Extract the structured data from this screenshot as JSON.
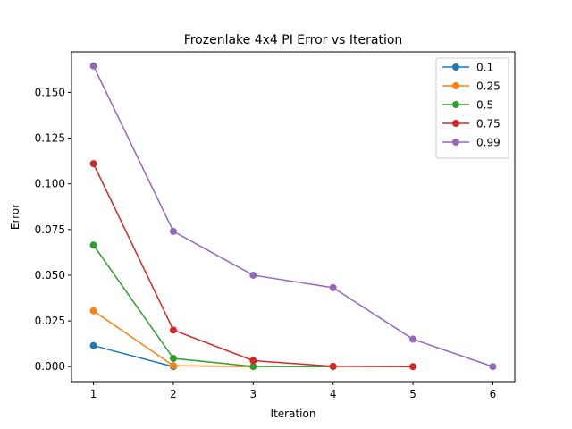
{
  "chart_data": {
    "type": "line",
    "title": "Frozenlake 4x4 PI Error vs Iteration",
    "xlabel": "Iteration",
    "ylabel": "Error",
    "xlim": [
      0.725,
      6.275
    ],
    "ylim": [
      -0.0082,
      0.1722
    ],
    "xticks": [
      1,
      2,
      3,
      4,
      5,
      6
    ],
    "xtick_labels": [
      "1",
      "2",
      "3",
      "4",
      "5",
      "6"
    ],
    "yticks": [
      0.0,
      0.025,
      0.05,
      0.075,
      0.1,
      0.125,
      0.15
    ],
    "ytick_labels": [
      "0.000",
      "0.025",
      "0.050",
      "0.075",
      "0.100",
      "0.125",
      "0.150"
    ],
    "grid": false,
    "legend_position": "top-right",
    "series": [
      {
        "name": "0.1",
        "color": "#1f77b4",
        "x": [
          1,
          2
        ],
        "y": [
          0.0115,
          0.0
        ]
      },
      {
        "name": "0.25",
        "color": "#ff7f0e",
        "x": [
          1,
          2,
          3
        ],
        "y": [
          0.0305,
          0.0005,
          0.0
        ]
      },
      {
        "name": "0.5",
        "color": "#2ca02c",
        "x": [
          1,
          2,
          3,
          4
        ],
        "y": [
          0.0665,
          0.0045,
          0.0001,
          0.0
        ]
      },
      {
        "name": "0.75",
        "color": "#d62728",
        "x": [
          1,
          2,
          3,
          4,
          5
        ],
        "y": [
          0.111,
          0.02,
          0.0033,
          0.0002,
          0.0
        ]
      },
      {
        "name": "0.99",
        "color": "#9467bd",
        "x": [
          1,
          2,
          3,
          4,
          5,
          6
        ],
        "y": [
          0.1645,
          0.074,
          0.05,
          0.0432,
          0.015,
          0.0
        ]
      }
    ]
  }
}
